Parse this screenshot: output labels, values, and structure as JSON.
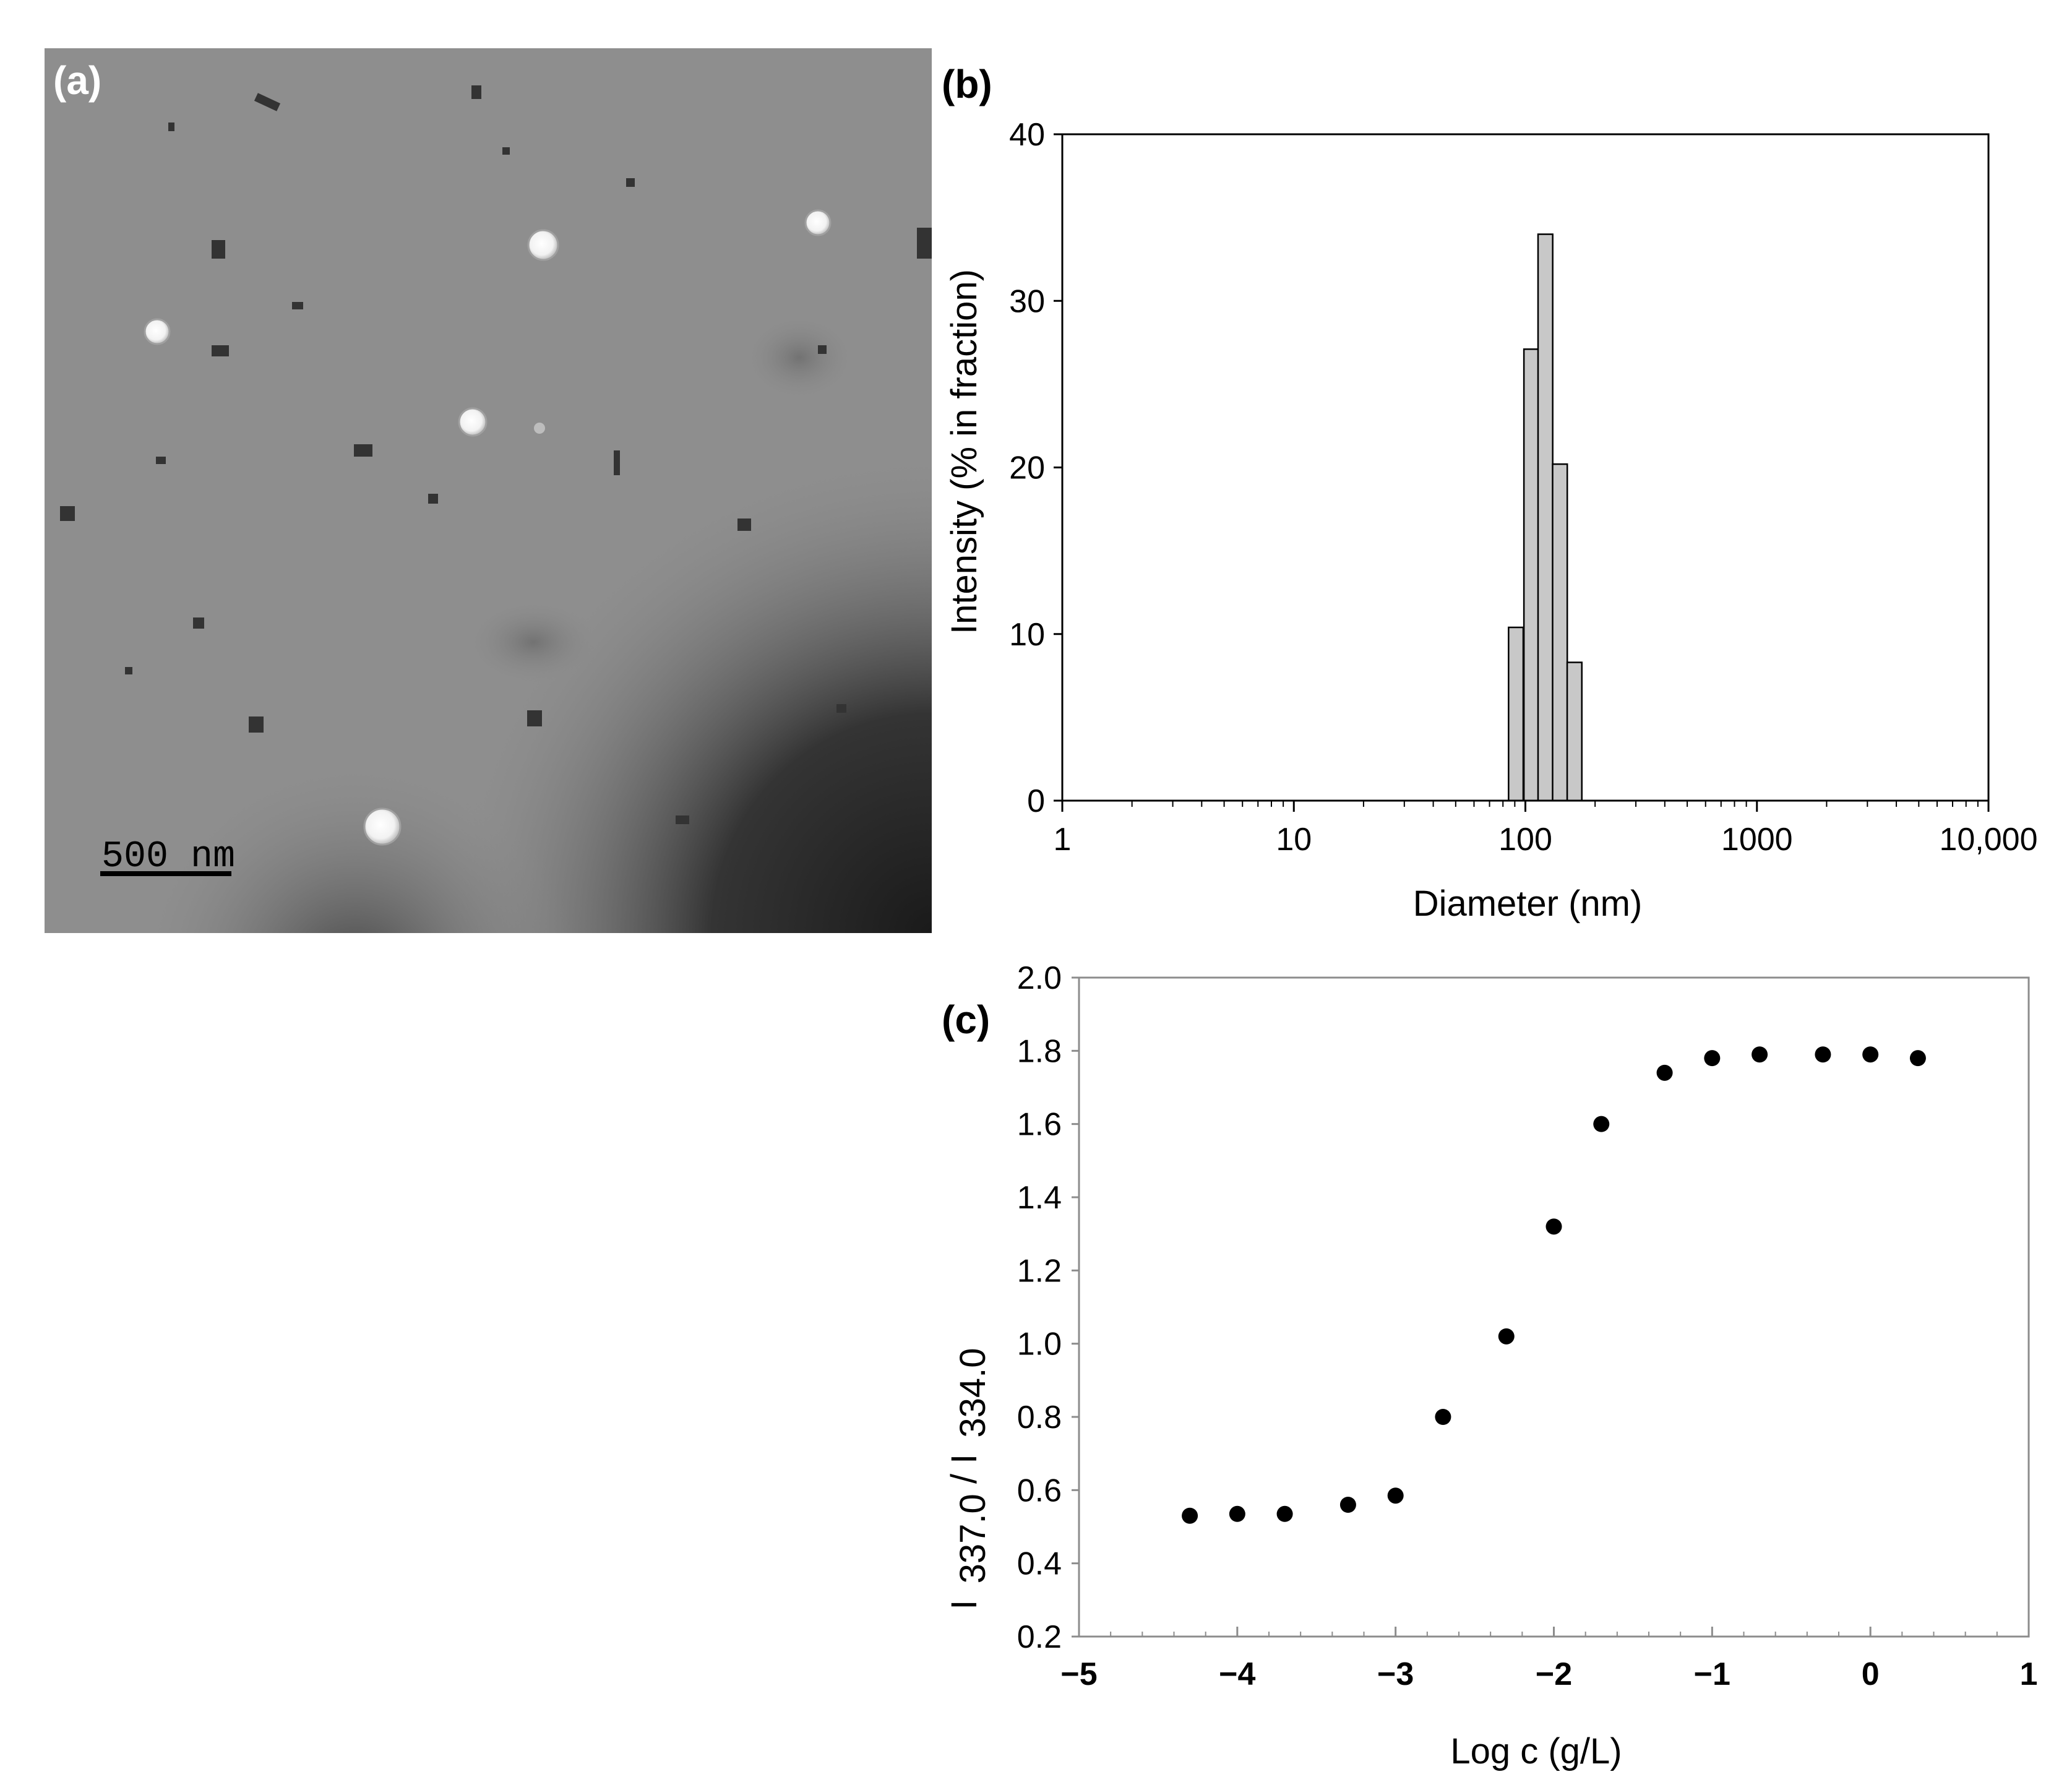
{
  "panels": {
    "a": {
      "label": "(a)",
      "scale_bar_label": "500 nm",
      "background_color": "#8e8e8e"
    },
    "b": {
      "label": "(b)"
    },
    "c": {
      "label": "(c)"
    }
  },
  "chart_data": [
    {
      "panel": "b",
      "type": "bar",
      "xlabel": "Diameter (nm)",
      "ylabel": "Intensity (% in fraction)",
      "x_scale": "log",
      "xlim": [
        1,
        10000
      ],
      "ylim": [
        0,
        40
      ],
      "x_ticks": [
        1,
        10,
        100,
        1000,
        10000
      ],
      "x_tick_labels": [
        "1",
        "10",
        "100",
        "1000",
        "10,000"
      ],
      "y_ticks": [
        0,
        10,
        20,
        30,
        40
      ],
      "y_tick_labels": [
        "0",
        "10",
        "20",
        "30",
        "40"
      ],
      "categories": [
        91,
        106,
        122,
        141,
        163
      ],
      "values": [
        10.4,
        27.1,
        34.0,
        20.2,
        8.3
      ],
      "bar_color": "#c8c8c8",
      "grid": false
    },
    {
      "panel": "c",
      "type": "scatter",
      "xlabel": "Log c (g/L)",
      "ylabel": "I 337.0 / I 334.0",
      "ylabel_parts": {
        "prefix1": "I",
        "sub1": "337.0",
        "slash": " / I",
        "sub2": "334.0"
      },
      "xlim": [
        -5,
        1
      ],
      "ylim": [
        0.2,
        2.0
      ],
      "x_ticks": [
        -5,
        -4,
        -3,
        -2,
        -1,
        0,
        1
      ],
      "x_tick_labels": [
        "−5",
        "−4",
        "−3",
        "−2",
        "−1",
        "0",
        "1"
      ],
      "y_ticks": [
        0.2,
        0.4,
        0.6,
        0.8,
        1.0,
        1.2,
        1.4,
        1.6,
        1.8,
        2.0
      ],
      "y_tick_labels": [
        "0.2",
        "0.4",
        "0.6",
        "0.8",
        "1.0",
        "1.2",
        "1.4",
        "1.6",
        "1.8",
        "2.0"
      ],
      "x": [
        -4.3,
        -4.0,
        -3.7,
        -3.3,
        -3.0,
        -2.7,
        -2.3,
        -2.0,
        -1.7,
        -1.3,
        -1.0,
        -0.7,
        -0.3,
        0.0,
        0.3
      ],
      "y": [
        0.53,
        0.535,
        0.535,
        0.56,
        0.585,
        0.8,
        1.02,
        1.32,
        1.6,
        1.74,
        1.78,
        1.79,
        1.79,
        1.79,
        1.78
      ],
      "marker_color": "#000000",
      "grid": false
    }
  ]
}
